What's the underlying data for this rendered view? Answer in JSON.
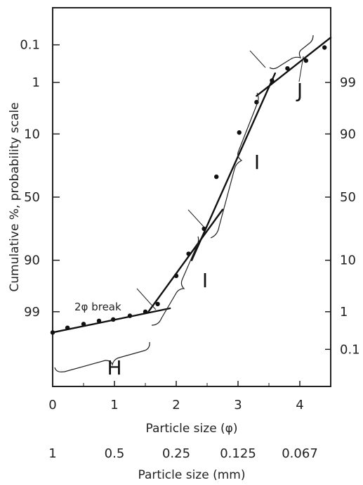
{
  "chart_data": {
    "type": "line",
    "xlabel": "Particle size (φ)",
    "ylabel": "Cumulative %, probability scale",
    "secondary_xlabel": "Particle size (mm)",
    "xlim": [
      0,
      4.5
    ],
    "x_ticks": [
      "0",
      "1",
      "2",
      "3",
      "4"
    ],
    "mm_ticks": [
      {
        "phi": 0,
        "label": "1"
      },
      {
        "phi": 1,
        "label": "0.5"
      },
      {
        "phi": 2,
        "label": "0.25"
      },
      {
        "phi": 3,
        "label": "0.125"
      },
      {
        "phi": 4,
        "label": "0.067"
      }
    ],
    "y_ticks_left": [
      "0.1",
      "1",
      "10",
      "50",
      "90",
      "99"
    ],
    "y_ticks_right": [
      "99",
      "90",
      "50",
      "10",
      "1",
      "0.1"
    ],
    "points": [
      {
        "x": 0.0,
        "y": 99.7
      },
      {
        "x": 0.24,
        "y": 99.6
      },
      {
        "x": 0.5,
        "y": 99.5
      },
      {
        "x": 0.75,
        "y": 99.4
      },
      {
        "x": 0.98,
        "y": 99.35
      },
      {
        "x": 1.25,
        "y": 99.2
      },
      {
        "x": 1.5,
        "y": 99.0
      },
      {
        "x": 1.7,
        "y": 98.5
      },
      {
        "x": 2.0,
        "y": 94.5
      },
      {
        "x": 2.2,
        "y": 87.5
      },
      {
        "x": 2.45,
        "y": 74.0
      },
      {
        "x": 2.65,
        "y": 34.0
      },
      {
        "x": 3.02,
        "y": 9.5
      },
      {
        "x": 3.3,
        "y": 2.7
      },
      {
        "x": 3.55,
        "y": 0.9
      },
      {
        "x": 3.8,
        "y": 0.45
      },
      {
        "x": 4.1,
        "y": 0.28
      },
      {
        "x": 4.4,
        "y": 0.12
      }
    ],
    "fit_lines": [
      {
        "from": {
          "x": 0.0,
          "y": 99.7
        },
        "to": {
          "x": 1.9,
          "y": 98.8
        }
      },
      {
        "from": {
          "x": 1.55,
          "y": 99.0
        },
        "to": {
          "x": 2.75,
          "y": 60.0
        }
      },
      {
        "from": {
          "x": 2.25,
          "y": 90.0
        },
        "to": {
          "x": 3.6,
          "y": 0.6
        }
      },
      {
        "from": {
          "x": 3.3,
          "y": 2.0
        },
        "to": {
          "x": 4.5,
          "y": 0.06
        }
      }
    ],
    "segment_labels": [
      "H",
      "I",
      "I",
      "J"
    ],
    "annotations": [
      "2φ break"
    ]
  }
}
